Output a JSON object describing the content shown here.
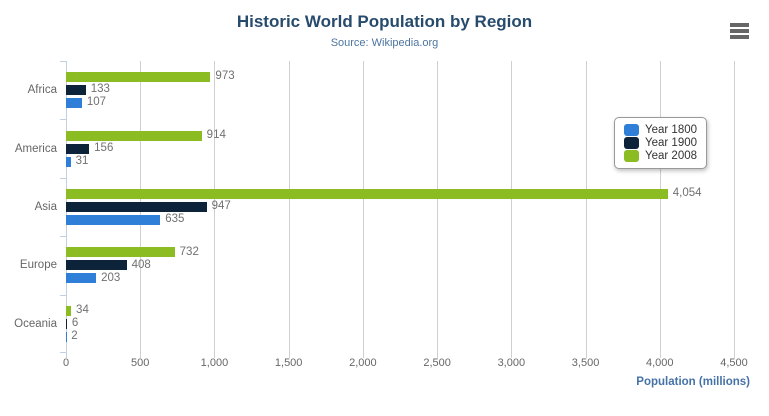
{
  "chart_data": {
    "type": "bar",
    "title": "Historic World Population by Region",
    "subtitle": "Source: Wikipedia.org",
    "categories": [
      "Africa",
      "America",
      "Asia",
      "Europe",
      "Oceania"
    ],
    "series": [
      {
        "name": "Year 1800",
        "color": "#2f7ed8",
        "values": [
          107,
          31,
          635,
          203,
          2
        ]
      },
      {
        "name": "Year 1900",
        "color": "#0d233a",
        "values": [
          133,
          156,
          947,
          408,
          6
        ]
      },
      {
        "name": "Year 2008",
        "color": "#8bbc21",
        "values": [
          973,
          914,
          4054,
          732,
          34
        ]
      }
    ],
    "bar_display_order": [
      "Year 2008",
      "Year 1900",
      "Year 1800"
    ],
    "xlabel": "Population (millions)",
    "ylabel": "",
    "xlim": [
      0,
      4500
    ],
    "xticks": [
      0,
      500,
      1000,
      1500,
      2000,
      2500,
      3000,
      3500,
      4000,
      4500
    ],
    "grid": true,
    "data_labels": true,
    "legend_position": "right"
  },
  "menu": {
    "icon": "hamburger-icon"
  },
  "colors": {
    "title": "#274b6d",
    "subtitle": "#4d759e",
    "axis_title": "#4572a7",
    "axis_line": "#c0d0e0",
    "gridline": "#d0d0d0",
    "label_text": "#666666"
  }
}
